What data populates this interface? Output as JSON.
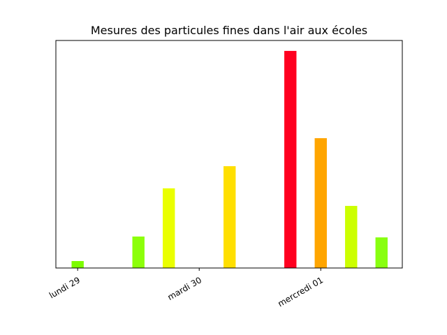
{
  "chart_data": {
    "type": "bar",
    "title": "Mesures des particules fines dans l'air aux écoles",
    "x": [
      0,
      12,
      18,
      30,
      42,
      48,
      54,
      60
    ],
    "values": [
      3.2,
      14.5,
      36.7,
      46.9,
      100,
      59.8,
      28.6,
      14.1
    ],
    "colors": [
      "#7cfc00",
      "#8cff0a",
      "#eaff00",
      "#ffdf00",
      "#ff0020",
      "#ffa500",
      "#ccff00",
      "#88ff10"
    ],
    "xlim": [
      -4.3,
      64.1
    ],
    "ylim": [
      0,
      104.8
    ],
    "xticks": [
      {
        "value": 0,
        "label": "lundi 29"
      },
      {
        "value": 24,
        "label": "mardi 30"
      },
      {
        "value": 48,
        "label": "mercredi 01"
      }
    ]
  }
}
